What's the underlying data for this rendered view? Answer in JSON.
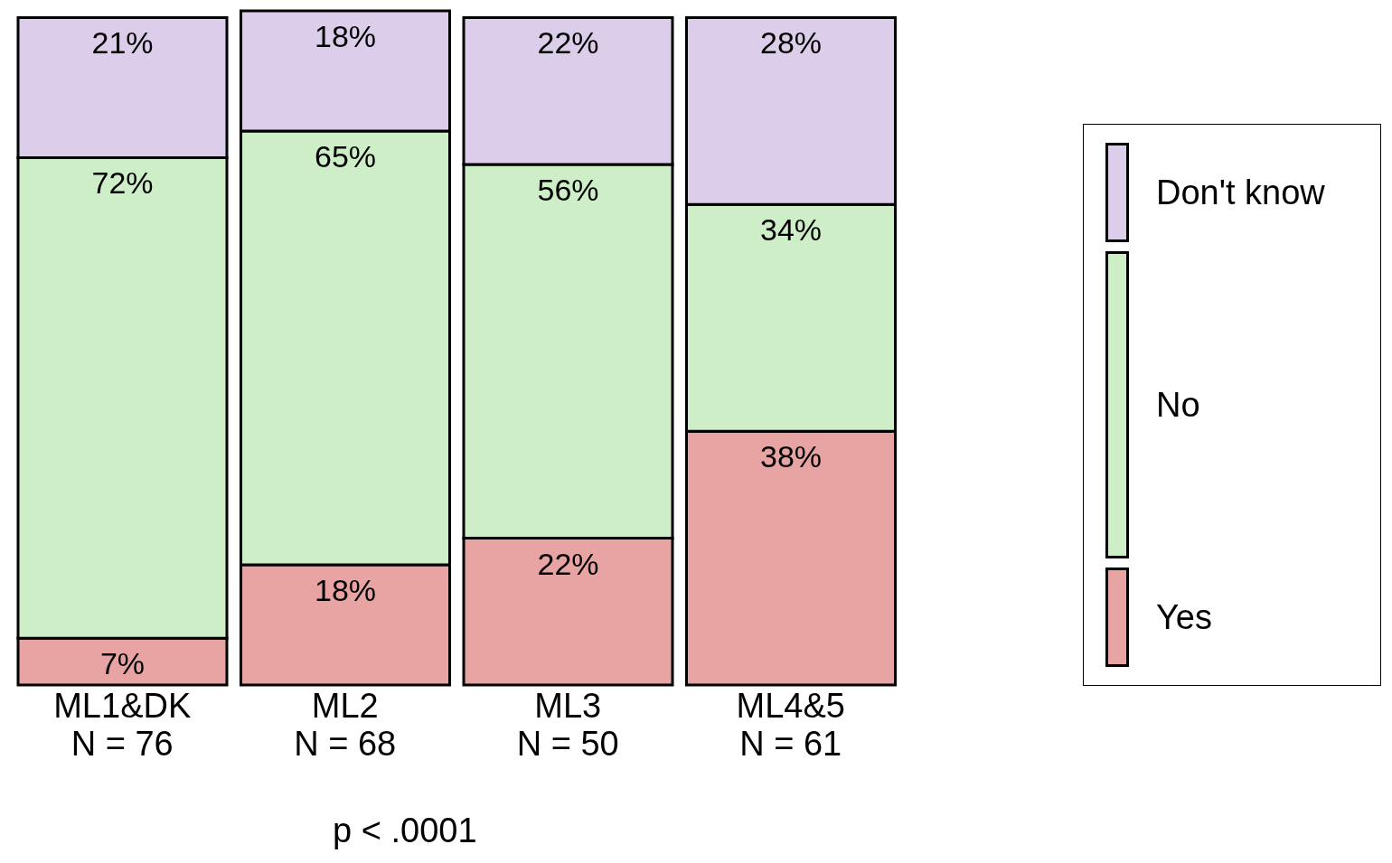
{
  "chart_data": {
    "type": "bar",
    "stacked": true,
    "legend": "right",
    "categories": [
      "ML1&DK\nN = 76",
      "ML2\nN = 68",
      "ML3\nN = 50",
      "ML4&5\nN = 61"
    ],
    "series": [
      {
        "name": "Yes",
        "color": "#e8a3a3",
        "values": [
          7,
          18,
          22,
          38
        ],
        "value_labels": [
          "7%",
          "18%",
          "22%",
          "38%"
        ]
      },
      {
        "name": "No",
        "color": "#cdeec6",
        "values": [
          72,
          65,
          56,
          34
        ],
        "value_labels": [
          "72%",
          "65%",
          "56%",
          "34%"
        ]
      },
      {
        "name": "Don't know",
        "color": "#dccdea",
        "values": [
          21,
          18,
          22,
          28
        ],
        "value_labels": [
          "21%",
          "18%",
          "22%",
          "28%"
        ]
      }
    ],
    "annotations": [
      "p < .0001"
    ]
  }
}
